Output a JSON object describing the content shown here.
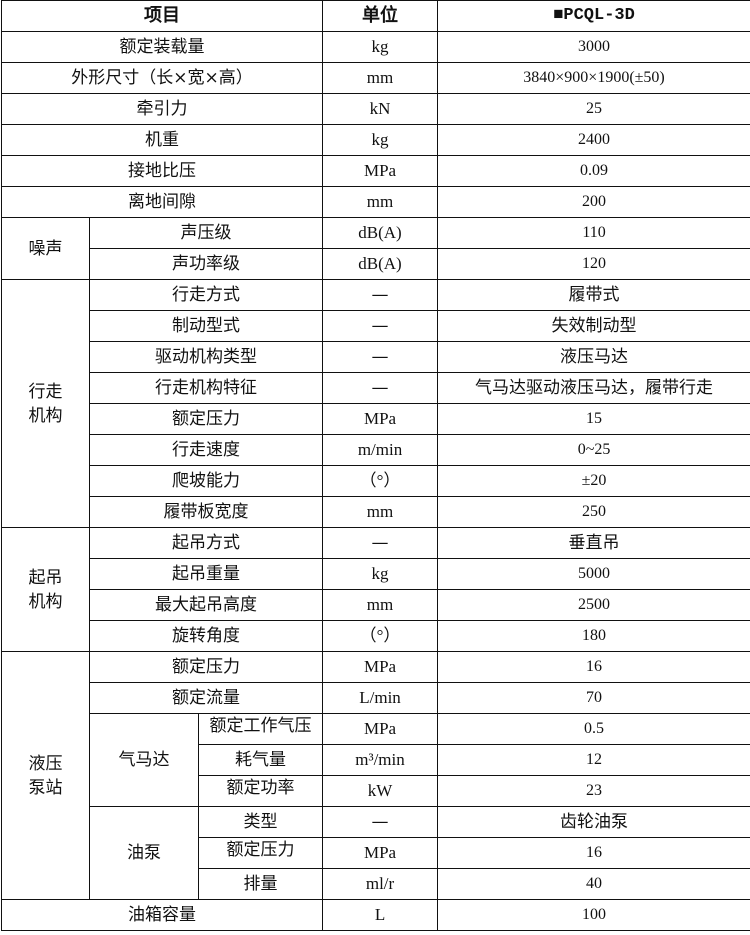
{
  "header": {
    "item": "项目",
    "unit": "单位",
    "model": "■PCQL-3D"
  },
  "rows": [
    {
      "item": "额定装载量",
      "unit": "kg",
      "value": "3000"
    },
    {
      "item": "外形尺寸（长×宽×高）",
      "unit": "mm",
      "value": "3840×900×1900(±50)"
    },
    {
      "item": "牵引力",
      "unit": "kN",
      "value": "25"
    },
    {
      "item": "机重",
      "unit": "kg",
      "value": "2400"
    },
    {
      "item": "接地比压",
      "unit": "MPa",
      "value": "0.09"
    },
    {
      "item": "离地间隙",
      "unit": "mm",
      "value": "200"
    },
    {
      "group": "噪声",
      "items": [
        {
          "item": "声压级",
          "unit": "dB(A)",
          "value": "110"
        },
        {
          "item": "声功率级",
          "unit": "dB(A)",
          "value": "120"
        }
      ]
    },
    {
      "group": "行走机构",
      "items": [
        {
          "item": "行走方式",
          "unit": "—",
          "value": "履带式"
        },
        {
          "item": "制动型式",
          "unit": "—",
          "value": "失效制动型"
        },
        {
          "item": "驱动机构类型",
          "unit": "—",
          "value": "液压马达"
        },
        {
          "item": "行走机构特征",
          "unit": "—",
          "value": "气马达驱动液压马达，履带行走"
        },
        {
          "item": "额定压力",
          "unit": "MPa",
          "value": "15"
        },
        {
          "item": "行走速度",
          "unit": "m/min",
          "value": "0~25"
        },
        {
          "item": "爬坡能力",
          "unit": "（°）",
          "value": "±20"
        },
        {
          "item": "履带板宽度",
          "unit": "mm",
          "value": "250"
        }
      ]
    },
    {
      "group": "起吊机构",
      "items": [
        {
          "item": "起吊方式",
          "unit": "—",
          "value": "垂直吊"
        },
        {
          "item": "起吊重量",
          "unit": "kg",
          "value": "5000"
        },
        {
          "item": "最大起吊高度",
          "unit": "mm",
          "value": "2500"
        },
        {
          "item": "旋转角度",
          "unit": "（°）",
          "value": "180"
        }
      ]
    },
    {
      "group": "液压泵站",
      "items": [
        {
          "item": "额定压力",
          "unit": "MPa",
          "value": "16"
        },
        {
          "item": "额定流量",
          "unit": "L/min",
          "value": "70"
        },
        {
          "subgroup": "气马达",
          "items": [
            {
              "item": "额定工作气压",
              "unit": "MPa",
              "value": "0.5"
            },
            {
              "item": "耗气量",
              "unit": "m³/min",
              "value": "12"
            },
            {
              "item": "额定功率",
              "unit": "kW",
              "value": "23"
            }
          ]
        },
        {
          "subgroup": "油泵",
          "items": [
            {
              "item": "类型",
              "unit": "—",
              "value": "齿轮油泵"
            },
            {
              "item": "额定压力",
              "unit": "MPa",
              "value": "16"
            },
            {
              "item": "排量",
              "unit": "ml/r",
              "value": "40"
            }
          ]
        }
      ]
    },
    {
      "item": "油箱容量",
      "unit": "L",
      "value": "100"
    }
  ]
}
